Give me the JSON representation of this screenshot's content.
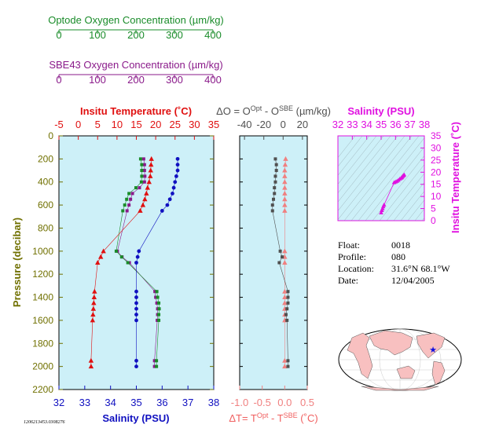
{
  "colors": {
    "optode": "#1a8c2a",
    "sbe43": "#8a1a8a",
    "temperature": "#e01010",
    "salinity": "#1010c0",
    "delta_temp": "#f08080",
    "delta_o": "#505050",
    "inset": "#e010e0",
    "pressure_axis": "#707000",
    "panel_bg": "#cdf0f8"
  },
  "optode_axis": {
    "title": "Optode Oxygen Concentration (µm/kg)",
    "ticks": [
      "0",
      "100",
      "200",
      "300",
      "400"
    ],
    "range": [
      0,
      400
    ]
  },
  "sbe43_axis": {
    "title": "SBE43 Oxygen Concentration (µm/kg)",
    "ticks": [
      "0",
      "100",
      "200",
      "300",
      "400"
    ],
    "range": [
      0,
      400
    ]
  },
  "main_panel": {
    "temp_title": "Insitu Temperature (˚C)",
    "temp_ticks": [
      "-5",
      "0",
      "5",
      "10",
      "15",
      "20",
      "25",
      "30",
      "35"
    ],
    "temp_range": [
      -5,
      35
    ],
    "sal_title": "Salinity (PSU)",
    "sal_ticks": [
      "32",
      "33",
      "34",
      "35",
      "36",
      "37",
      "38"
    ],
    "sal_range": [
      32,
      38
    ],
    "pressure_title": "Pressure (decibar)",
    "pressure_ticks": [
      "0",
      "200",
      "400",
      "600",
      "800",
      "1000",
      "1200",
      "1400",
      "1600",
      "1800",
      "2000",
      "2200"
    ],
    "pressure_range": [
      0,
      2200
    ]
  },
  "delta_panel": {
    "do_title_parts": [
      "ΔO = O",
      "Opt",
      " - O",
      "SBE",
      " (µm/kg)"
    ],
    "do_ticks": [
      "-40",
      "-20",
      "0",
      "20"
    ],
    "do_range": [
      -45,
      25
    ],
    "dt_title_parts": [
      "ΔT= T",
      "Opt",
      " - T",
      "SBE",
      " (˚C)"
    ],
    "dt_ticks": [
      "-1.0",
      "-0.5",
      "0.0",
      "0.5"
    ],
    "dt_range": [
      -1.0,
      0.5
    ]
  },
  "inset_panel": {
    "sal_title": "Salinity (PSU)",
    "sal_ticks": [
      "32",
      "33",
      "34",
      "35",
      "36",
      "37",
      "38"
    ],
    "sal_range": [
      32,
      38
    ],
    "temp_title": "Insitu Temperature (˚C)",
    "temp_ticks": [
      "0",
      "5",
      "10",
      "15",
      "20",
      "25",
      "30",
      "35"
    ],
    "temp_range": [
      0,
      35
    ]
  },
  "info": {
    "float_label": "Float:",
    "float_value": "0018",
    "profile_label": "Profile:",
    "profile_value": "080",
    "location_label": "Location:",
    "location_value": "31.6°N 68.1°W",
    "date_label": "Date:",
    "date_value": "12/04/2005"
  },
  "footer_id": "1206213453.0308276",
  "map": {
    "marker": "blue-star",
    "location": [
      -68.1,
      31.6
    ]
  },
  "chart_data": [
    {
      "type": "scatter",
      "name": "profile",
      "pressure": [
        200,
        250,
        300,
        350,
        400,
        450,
        500,
        550,
        600,
        650,
        1000,
        1050,
        1100,
        1350,
        1400,
        1450,
        1500,
        1550,
        1600,
        1950,
        2000
      ],
      "series": [
        {
          "name": "Insitu Temperature",
          "values": [
            18.9,
            18.8,
            18.7,
            18.6,
            18.3,
            17.9,
            17.6,
            17.2,
            16.7,
            16.0,
            6.5,
            5.8,
            5.0,
            4.2,
            4.1,
            4.0,
            3.9,
            3.8,
            3.7,
            3.3,
            3.3
          ]
        },
        {
          "name": "Salinity",
          "values": [
            36.6,
            36.6,
            36.6,
            36.55,
            36.5,
            36.45,
            36.4,
            36.3,
            36.2,
            36.0,
            35.1,
            35.05,
            35.0,
            35.0,
            35.0,
            35.0,
            35.0,
            35.0,
            35.0,
            35.0,
            35.0
          ]
        },
        {
          "name": "Optode Oxygen",
          "values": [
            211,
            214,
            214,
            214,
            213,
            199,
            181,
            175,
            170,
            165,
            148,
            162,
            178,
            253,
            255,
            258,
            259,
            258,
            258,
            252,
            252
          ]
        },
        {
          "name": "SBE43 Oxygen",
          "values": [
            219,
            221,
            221,
            222,
            221,
            208,
            190,
            185,
            181,
            176,
            151,
            163,
            182,
            248,
            250,
            253,
            255,
            255,
            254,
            247,
            247
          ]
        }
      ]
    },
    {
      "type": "scatter",
      "name": "differences",
      "pressure": [
        200,
        250,
        300,
        350,
        400,
        450,
        500,
        550,
        600,
        650,
        1000,
        1050,
        1100,
        1350,
        1400,
        1450,
        1500,
        1550,
        1600,
        1950,
        2000
      ],
      "series": [
        {
          "name": "ΔO",
          "values": [
            -8,
            -7,
            -7,
            -8,
            -8,
            -9,
            -9,
            -10,
            -11,
            -11,
            -3,
            -1,
            -4,
            5,
            5,
            5,
            4,
            3,
            4,
            5,
            5
          ]
        },
        {
          "name": "ΔT",
          "values": [
            0.02,
            0.01,
            0.0,
            0.0,
            0.0,
            0.0,
            0.0,
            0.0,
            0.0,
            0.0,
            0.0,
            0.0,
            0.0,
            0.0,
            0.0,
            0.0,
            0.0,
            0.0,
            0.0,
            0.0,
            0.0
          ]
        }
      ]
    },
    {
      "type": "scatter",
      "name": "ts-diagram",
      "x": [
        36.6,
        36.55,
        36.5,
        36.45,
        36.4,
        36.3,
        36.2,
        36.1,
        36.0,
        35.9,
        35.2,
        35.15,
        35.1,
        35.05,
        35.0
      ],
      "y": [
        18.9,
        18.6,
        18.3,
        17.9,
        17.6,
        17.2,
        16.7,
        16.3,
        16.0,
        15.7,
        6.5,
        5.8,
        5.0,
        4.2,
        3.3
      ]
    }
  ]
}
